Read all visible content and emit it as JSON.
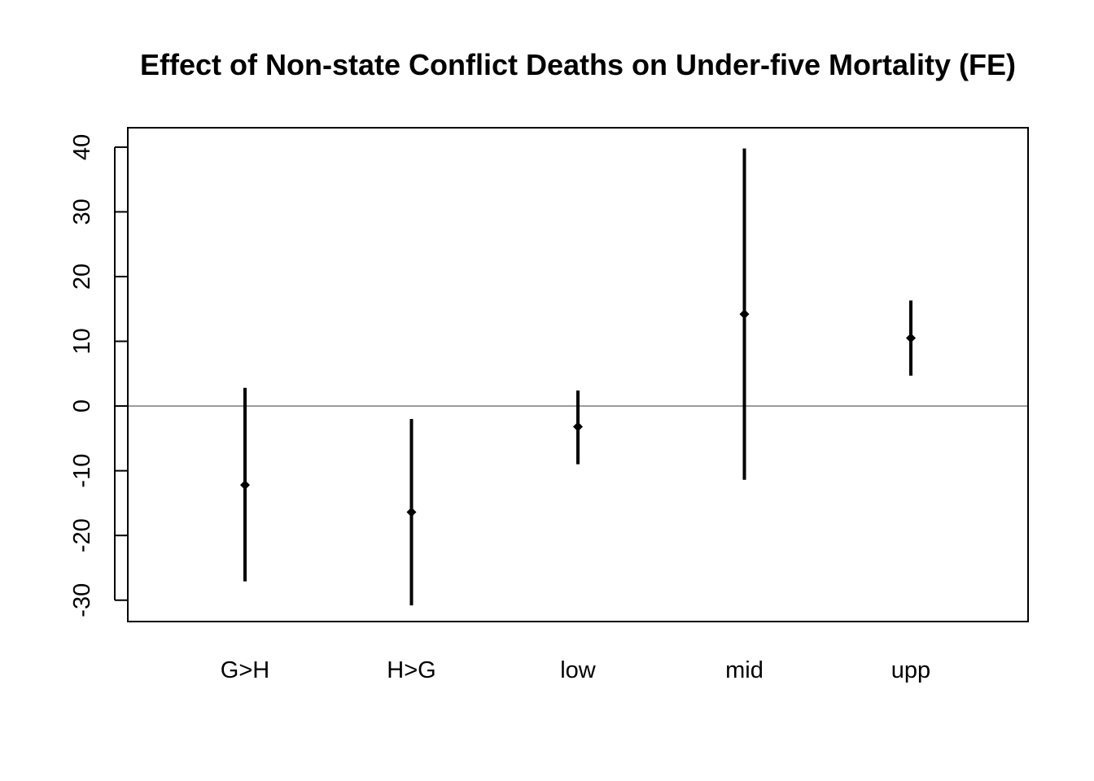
{
  "chart_data": {
    "type": "errorbar",
    "title": "Effect of Non-state Conflict Deaths on Under-five Mortality (FE)",
    "xlabel": "",
    "ylabel": "",
    "categories": [
      "G>H",
      "H>G",
      "low",
      "mid",
      "upp"
    ],
    "estimates": [
      -12.2,
      -16.4,
      -3.2,
      14.2,
      10.5
    ],
    "lower": [
      -27.1,
      -30.8,
      -9.0,
      -11.4,
      4.7
    ],
    "upper": [
      2.8,
      -2.0,
      2.4,
      39.8,
      16.3
    ],
    "yticks": [
      -30,
      -20,
      -10,
      0,
      10,
      20,
      30,
      40
    ],
    "ylim": [
      -33.3,
      43.0
    ],
    "reference_line": 0,
    "grid": false,
    "legend": "none",
    "colors": {
      "marks": "#000000",
      "reference_line": "#4d4d4d",
      "frame": "#000000"
    }
  }
}
